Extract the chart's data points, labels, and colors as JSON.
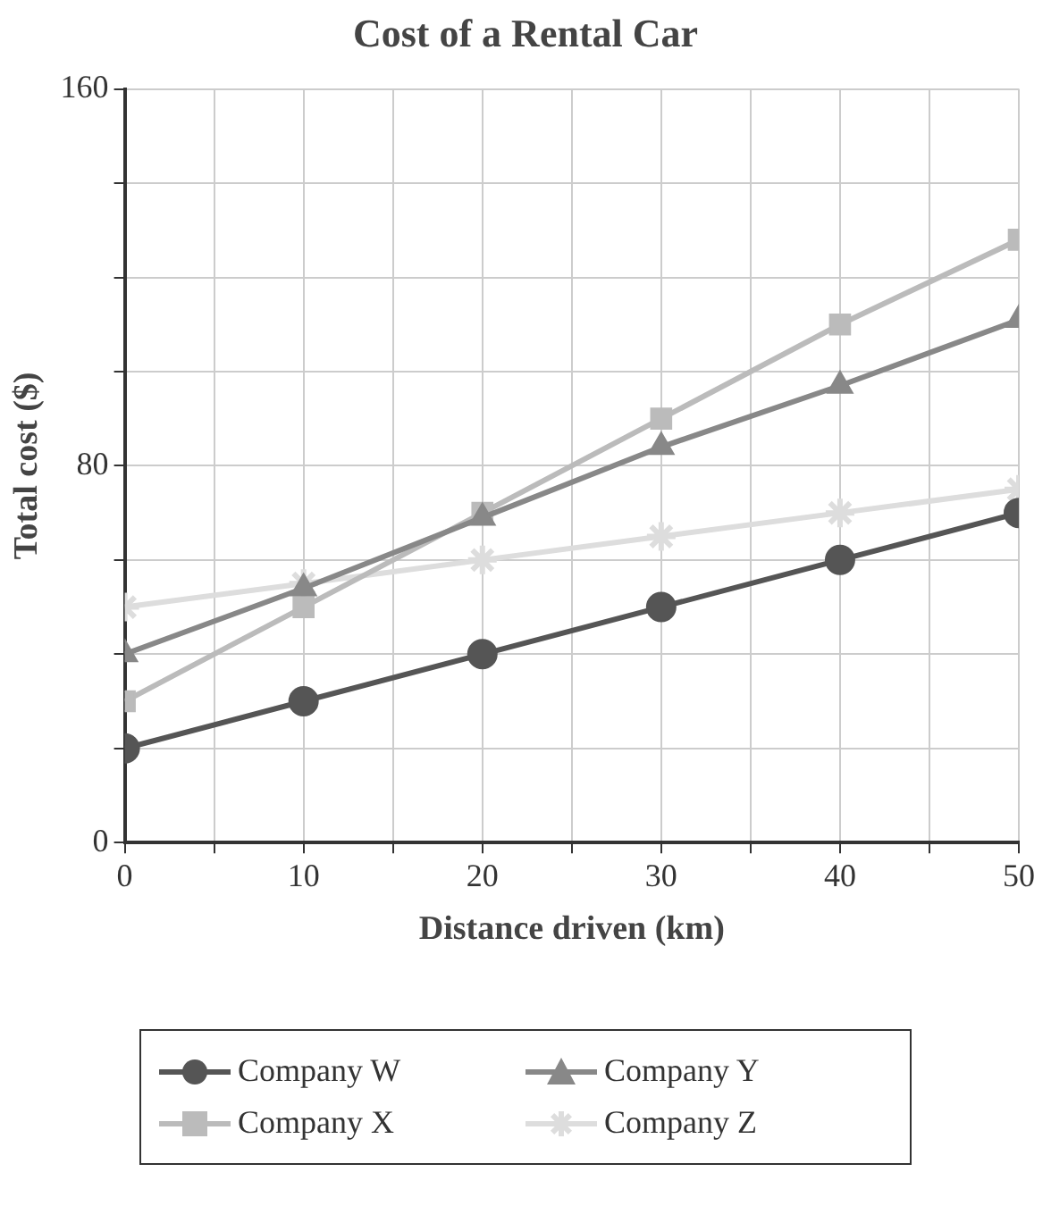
{
  "chart_data": {
    "type": "line",
    "title": "Cost of a Rental Car",
    "xlabel": "Distance driven (km)",
    "ylabel": "Total cost ($)",
    "x": [
      0,
      10,
      20,
      30,
      40,
      50
    ],
    "xlim": [
      0,
      50
    ],
    "xticks": [
      0,
      {
        "value": 5,
        "label": null
      },
      10,
      {
        "value": 15,
        "label": null
      },
      20,
      {
        "value": 25,
        "label": null
      },
      30,
      {
        "value": 35,
        "label": null
      },
      40,
      {
        "value": 45,
        "label": null
      },
      50
    ],
    "ylim": [
      0,
      160
    ],
    "yticks": [
      0,
      {
        "value": 20,
        "label": null
      },
      {
        "value": 40,
        "label": null
      },
      {
        "value": 60,
        "label": null
      },
      80,
      {
        "value": 100,
        "label": null
      },
      {
        "value": 120,
        "label": null
      },
      {
        "value": 140,
        "label": null
      },
      160
    ],
    "grid": true,
    "legend": "bottom",
    "line_style": "solid",
    "series": [
      {
        "name": "Company W",
        "color": "#555555",
        "marker": "circle",
        "values": [
          20,
          30,
          40,
          50,
          60,
          70
        ]
      },
      {
        "name": "Company Y",
        "color": "#888888",
        "marker": "triangle",
        "values": [
          40,
          54,
          69,
          84,
          97,
          111
        ]
      },
      {
        "name": "Company X",
        "color": "#bbbbbb",
        "marker": "square",
        "values": [
          30,
          50,
          70,
          90,
          110,
          128
        ]
      },
      {
        "name": "Company Z",
        "color": "#dddddd",
        "marker": "cross",
        "values": [
          50,
          55,
          60,
          65,
          70,
          75
        ]
      }
    ]
  }
}
